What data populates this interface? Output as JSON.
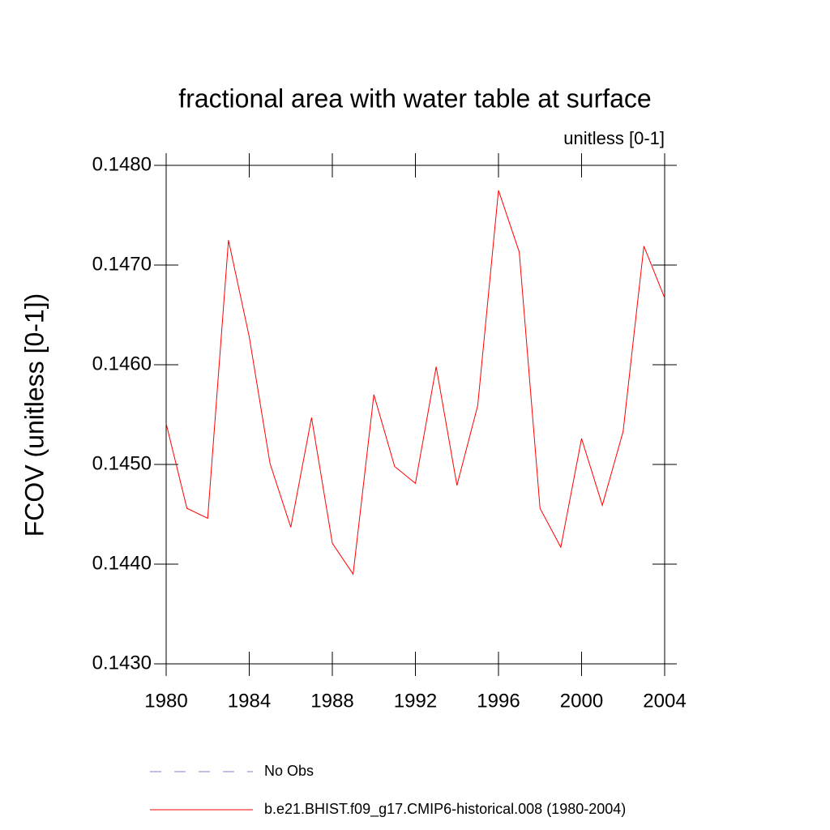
{
  "chart_data": {
    "type": "line",
    "title": "fractional area with water table at surface",
    "subtitle": "unitless [0-1]",
    "y_label": "FCOV  (unitless [0-1])",
    "x": [
      1980,
      1981,
      1982,
      1983,
      1984,
      1985,
      1986,
      1987,
      1988,
      1989,
      1990,
      1991,
      1992,
      1993,
      1994,
      1995,
      1996,
      1997,
      1998,
      1999,
      2000,
      2001,
      2002,
      2003,
      2004
    ],
    "series": [
      {
        "name": "No Obs",
        "color": "#8080c8",
        "dashed": true,
        "values": [
          null,
          null,
          null,
          null,
          null,
          null,
          null,
          null,
          null,
          null,
          null,
          null,
          null,
          null,
          null,
          null,
          null,
          null,
          null,
          null,
          null,
          null,
          null,
          null,
          null
        ]
      },
      {
        "name": "b.e21.BHIST.f09_g17.CMIP6-historical.008 (1980-2004)",
        "color": "#ff0000",
        "dashed": false,
        "values": [
          0.14541,
          0.14456,
          0.14446,
          0.14725,
          0.14628,
          0.14501,
          0.14437,
          0.14547,
          0.14421,
          0.1439,
          0.1457,
          0.14498,
          0.14481,
          0.14598,
          0.14479,
          0.14559,
          0.14775,
          0.14713,
          0.14456,
          0.14417,
          0.14526,
          0.14459,
          0.14533,
          0.14719,
          0.14667
        ]
      }
    ],
    "xlim": [
      1980,
      2004
    ],
    "xticks": [
      1980,
      1984,
      1988,
      1992,
      1996,
      2000,
      2004
    ],
    "ylim": [
      0.143,
      0.148
    ],
    "yticks": [
      {
        "value": 0.143,
        "label": "0.1430"
      },
      {
        "value": 0.144,
        "label": "0.1440"
      },
      {
        "value": 0.145,
        "label": "0.1450"
      },
      {
        "value": 0.146,
        "label": "0.1460"
      },
      {
        "value": 0.147,
        "label": "0.1470"
      },
      {
        "value": 0.148,
        "label": "0.1480"
      }
    ],
    "grid": false
  }
}
